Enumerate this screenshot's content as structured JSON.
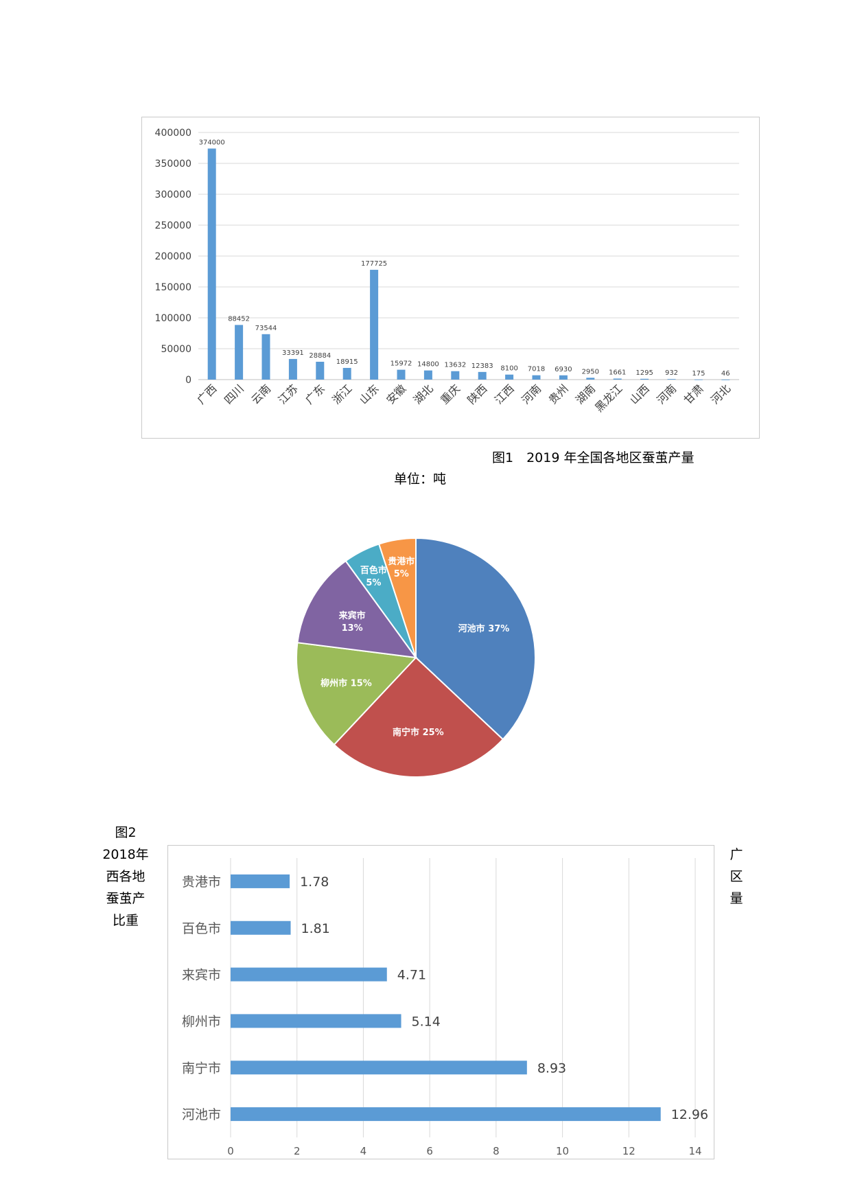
{
  "figure1": {
    "caption": "图1　2019 年全国各地区蚕茧产量",
    "unit": "单位：吨",
    "chart_data": {
      "type": "bar",
      "categories": [
        "广西",
        "四川",
        "云南",
        "江苏",
        "广东",
        "浙江",
        "山东",
        "安徽",
        "湖北",
        "重庆",
        "陕西",
        "江西",
        "河南",
        "贵州",
        "湖南",
        "黑龙江",
        "山西",
        "河南",
        "甘肃",
        "河北"
      ],
      "values": [
        374000,
        88452,
        73544,
        33391,
        28884,
        18915,
        177725,
        15972,
        14800,
        13632,
        12383,
        8100,
        7018,
        6930,
        2950,
        1661,
        1295,
        932,
        175,
        46
      ],
      "yticks": [
        "0",
        "50000",
        "100000",
        "150000",
        "200000",
        "250000",
        "300000",
        "350000",
        "400000"
      ],
      "ylim": [
        0,
        400000
      ],
      "grid": true,
      "bar_color": "#5b9bd5"
    }
  },
  "figure2": {
    "left_caption": [
      "图2",
      "2018年",
      "西各地",
      "蚕茧产",
      "比重"
    ],
    "right_caption": [
      "广",
      "区",
      "量"
    ],
    "chart_data": {
      "type": "pie",
      "slices": [
        {
          "label": "河池市",
          "pct_label": "37%",
          "value": 37,
          "color": "#4f81bd"
        },
        {
          "label": "南宁市",
          "pct_label": "25%",
          "value": 25,
          "color": "#c0504d"
        },
        {
          "label": "柳州市",
          "pct_label": "15%",
          "value": 15,
          "color": "#9bbb59"
        },
        {
          "label": "来宾市",
          "pct_label": "13%",
          "value": 13,
          "color": "#8064a2"
        },
        {
          "label": "百色市",
          "pct_label": "5%",
          "value": 5,
          "color": "#4bacc6"
        },
        {
          "label": "贵港市",
          "pct_label": "5%",
          "value": 5,
          "color": "#f79646"
        }
      ]
    }
  },
  "figure3": {
    "chart_data": {
      "type": "bar",
      "orientation": "horizontal",
      "categories": [
        "贵港市",
        "百色市",
        "来宾市",
        "柳州市",
        "南宁市",
        "河池市"
      ],
      "values": [
        1.78,
        1.81,
        4.71,
        5.14,
        8.93,
        12.96
      ],
      "value_labels": [
        "1.78",
        "1.81",
        "4.71",
        "5.14",
        "8.93",
        "12.96"
      ],
      "xticks": [
        "0",
        "2",
        "4",
        "6",
        "8",
        "10",
        "12",
        "14"
      ],
      "xlim": [
        0,
        14
      ],
      "grid": true,
      "bar_color": "#5b9bd5"
    }
  }
}
